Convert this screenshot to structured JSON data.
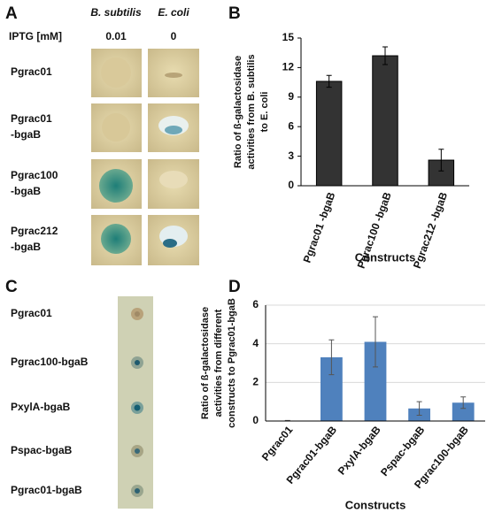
{
  "panels": {
    "A": {
      "letter": "A",
      "headers": [
        "B. subtilis",
        "E. coli"
      ],
      "iptg_label": "IPTG [mM]",
      "iptg": [
        "0.01",
        "0"
      ],
      "rows": [
        [
          "Pgrac01"
        ],
        [
          "Pgrac01",
          "-bgaB"
        ],
        [
          "Pgrac100",
          "-bgaB"
        ],
        [
          "Pgrac212",
          "-bgaB"
        ]
      ]
    },
    "C": {
      "letter": "C",
      "rows": [
        "Pgrac01",
        "Pgrac100-bgaB",
        "PxylA-bgaB",
        "Pspac-bgaB",
        "Pgrac01-bgaB"
      ]
    }
  },
  "chart_data": [
    {
      "type": "bar",
      "letter": "B",
      "ylabel": [
        "Ratio of ß-galactosidase",
        "activities from B. subtilis",
        "to E. coli"
      ],
      "xlabel": "Constructs",
      "categories": [
        "Pgrac01 -bgaB",
        "Pgrac100 -bgaB",
        "Pgrac212 -bgaB"
      ],
      "values": [
        10.6,
        13.2,
        2.6
      ],
      "errors": [
        0.6,
        0.9,
        1.1
      ],
      "color": "#333333",
      "ylim": [
        0,
        15
      ],
      "yticks": [
        0,
        3,
        6,
        9,
        12,
        15
      ],
      "grid": false
    },
    {
      "type": "bar",
      "letter": "D",
      "ylabel": [
        "Ratio of ß-galactosidase",
        "activities from different",
        "constructs to Pgrac01-bgaB"
      ],
      "xlabel": "Constructs",
      "categories": [
        "Pgrac01",
        "Pgrac01-bgaB",
        "PxylA-bgaB",
        "Pspac-bgaB",
        "Pgrac100-bgaB"
      ],
      "values": [
        0.02,
        3.3,
        4.1,
        0.65,
        0.95
      ],
      "errors": [
        0.01,
        0.9,
        1.3,
        0.35,
        0.3
      ],
      "color": "#4f81bd",
      "ylim": [
        0,
        6
      ],
      "yticks": [
        0,
        2,
        4,
        6
      ],
      "grid": true
    }
  ]
}
